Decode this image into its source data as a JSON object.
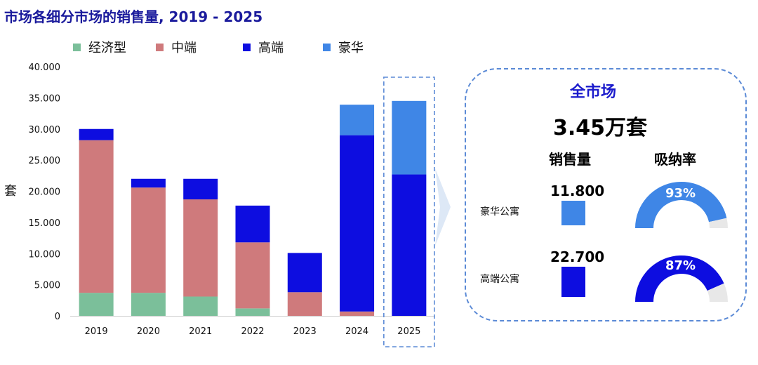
{
  "title": "市场各细分市场的销售量, 2019 - 2025",
  "colors": {
    "economy": "#7bbf9a",
    "mid": "#cf7a7c",
    "high": "#0d0de0",
    "luxury": "#3f86e6",
    "title": "#1a1a9c",
    "gauge_bg": "#e8e8e8"
  },
  "chart_data": {
    "type": "bar",
    "stacked": true,
    "title": "市场各细分市场的销售量, 2019 - 2025",
    "categories": [
      "2019",
      "2020",
      "2021",
      "2022",
      "2023",
      "2024",
      "2025"
    ],
    "series": [
      {
        "name": "经济型",
        "color": "#7bbf9a",
        "values": [
          3700,
          3700,
          3100,
          1200,
          0,
          0,
          0
        ]
      },
      {
        "name": "中端",
        "color": "#cf7a7c",
        "values": [
          24500,
          16900,
          15600,
          10600,
          3800,
          700,
          0
        ]
      },
      {
        "name": "高端",
        "color": "#0d0de0",
        "values": [
          1800,
          1400,
          3300,
          5900,
          6300,
          28300,
          22700
        ]
      },
      {
        "name": "豪华",
        "color": "#3f86e6",
        "values": [
          0,
          0,
          0,
          0,
          0,
          4900,
          11800
        ]
      }
    ],
    "ylabel": "套",
    "xlabel": "",
    "ylim": [
      0,
      40000
    ],
    "yticks": [
      "0",
      "5.000",
      "10.000",
      "15.000",
      "20.000",
      "25.000",
      "30.000",
      "35.000",
      "40.000"
    ],
    "ytick_values": [
      0,
      5000,
      10000,
      15000,
      20000,
      25000,
      30000,
      35000,
      40000
    ],
    "highlight_category": "2025",
    "grid": false,
    "legend": "top"
  },
  "panel": {
    "title": "全市场",
    "total": "3.45万套",
    "col_sales": "销售量",
    "col_absorption": "吸纳率",
    "rows": [
      {
        "label": "豪华公寓",
        "value": "11.800",
        "sales": 11800,
        "absorption_label": "93%",
        "absorption": 93,
        "color": "#3f86e6"
      },
      {
        "label": "高端公寓",
        "value": "22.700",
        "sales": 22700,
        "absorption_label": "87%",
        "absorption": 87,
        "color": "#0d0de0"
      }
    ]
  }
}
